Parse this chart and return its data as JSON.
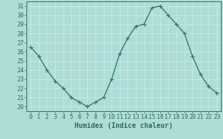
{
  "x": [
    0,
    1,
    2,
    3,
    4,
    5,
    6,
    7,
    8,
    9,
    10,
    11,
    12,
    13,
    14,
    15,
    16,
    17,
    18,
    19,
    20,
    21,
    22,
    23
  ],
  "y": [
    26.5,
    25.5,
    24,
    22.8,
    22,
    21,
    20.5,
    20,
    20.5,
    21,
    23,
    25.8,
    27.5,
    28.8,
    29,
    30.8,
    31,
    30,
    29,
    28,
    25.5,
    23.5,
    22.2,
    21.5
  ],
  "line_color": "#2d7a6a",
  "marker": "+",
  "bg_color": "#aeddd8",
  "grid_color": "#c8ecea",
  "xlabel": "Humidex (Indice chaleur)",
  "ylim": [
    19.5,
    31.5
  ],
  "xlim": [
    -0.5,
    23.5
  ],
  "yticks": [
    20,
    21,
    22,
    23,
    24,
    25,
    26,
    27,
    28,
    29,
    30,
    31
  ],
  "xticks": [
    0,
    1,
    2,
    3,
    4,
    5,
    6,
    7,
    8,
    9,
    10,
    11,
    12,
    13,
    14,
    15,
    16,
    17,
    18,
    19,
    20,
    21,
    22,
    23
  ],
  "tick_color": "#2d6b5c",
  "label_fontsize": 7,
  "tick_fontsize": 6
}
